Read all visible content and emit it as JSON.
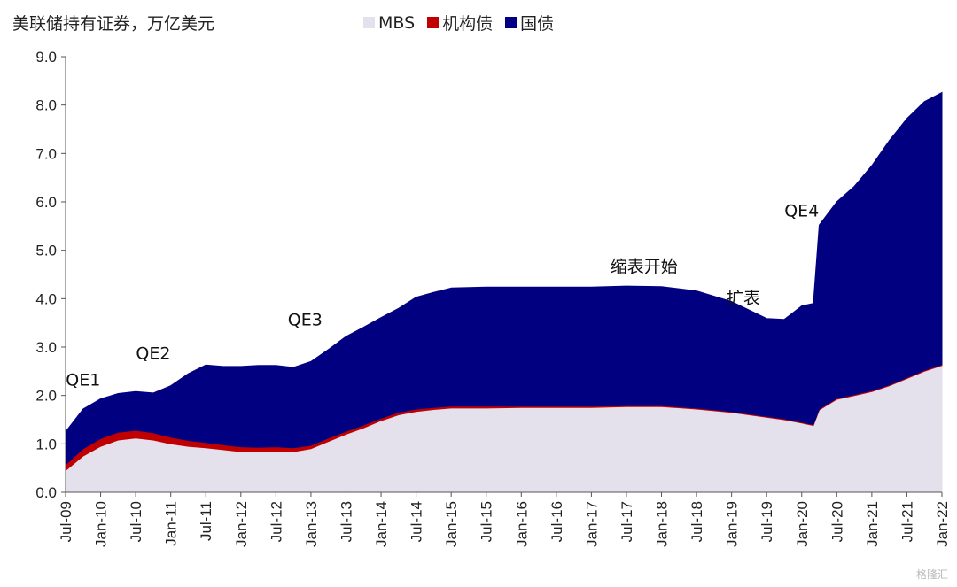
{
  "chart_data": {
    "type": "area",
    "stacked": true,
    "title": "美联储持有证券，万亿美元",
    "xlabel": "",
    "ylabel": "",
    "ylim": [
      0,
      9
    ],
    "yticks": [
      "0.0",
      "1.0",
      "2.0",
      "3.0",
      "4.0",
      "5.0",
      "6.0",
      "7.0",
      "8.0",
      "9.0"
    ],
    "x_tick_labels": [
      "Jul-09",
      "Jan-10",
      "Jul-10",
      "Jan-11",
      "Jul-11",
      "Jan-12",
      "Jul-12",
      "Jan-13",
      "Jul-13",
      "Jan-14",
      "Jul-14",
      "Jan-15",
      "Jul-15",
      "Jan-16",
      "Jul-16",
      "Jan-17",
      "Jul-17",
      "Jan-18",
      "Jul-18",
      "Jan-19",
      "Jul-19",
      "Jan-20",
      "Jul-20",
      "Jan-21",
      "Jul-21",
      "Jan-22"
    ],
    "legend_position": "top",
    "series": [
      {
        "name": "MBS",
        "color": "#e4e0ec",
        "x": [
          "2009-07",
          "2009-10",
          "2010-01",
          "2010-04",
          "2010-07",
          "2010-10",
          "2011-01",
          "2011-04",
          "2011-07",
          "2011-10",
          "2012-01",
          "2012-04",
          "2012-07",
          "2012-10",
          "2013-01",
          "2013-04",
          "2013-07",
          "2013-10",
          "2014-01",
          "2014-04",
          "2014-07",
          "2014-10",
          "2015-01",
          "2015-07",
          "2016-01",
          "2016-07",
          "2017-01",
          "2017-07",
          "2018-01",
          "2018-07",
          "2019-01",
          "2019-07",
          "2019-10",
          "2020-01",
          "2020-03",
          "2020-04",
          "2020-07",
          "2020-10",
          "2021-01",
          "2021-04",
          "2021-07",
          "2021-10",
          "2022-01"
        ],
        "values": [
          0.45,
          0.75,
          0.95,
          1.08,
          1.12,
          1.08,
          1.0,
          0.95,
          0.92,
          0.88,
          0.84,
          0.84,
          0.85,
          0.84,
          0.9,
          1.05,
          1.2,
          1.33,
          1.48,
          1.6,
          1.67,
          1.71,
          1.74,
          1.74,
          1.75,
          1.75,
          1.75,
          1.77,
          1.77,
          1.72,
          1.65,
          1.55,
          1.5,
          1.43,
          1.38,
          1.7,
          1.92,
          2.0,
          2.08,
          2.2,
          2.35,
          2.5,
          2.62
        ]
      },
      {
        "name": "机构债",
        "color": "#c00000",
        "x": [
          "2009-07",
          "2009-10",
          "2010-01",
          "2010-04",
          "2010-07",
          "2010-10",
          "2011-01",
          "2011-04",
          "2011-07",
          "2011-10",
          "2012-01",
          "2012-04",
          "2012-07",
          "2012-10",
          "2013-01",
          "2013-04",
          "2013-07",
          "2013-10",
          "2014-01",
          "2014-04",
          "2014-07",
          "2014-10",
          "2015-01",
          "2015-07",
          "2016-01",
          "2016-07",
          "2017-01",
          "2017-07",
          "2018-01",
          "2018-07",
          "2019-01",
          "2019-07",
          "2019-10",
          "2020-01",
          "2020-03",
          "2020-04",
          "2020-07",
          "2020-10",
          "2021-01",
          "2021-04",
          "2021-07",
          "2021-10",
          "2022-01"
        ],
        "values": [
          0.12,
          0.15,
          0.16,
          0.16,
          0.16,
          0.15,
          0.14,
          0.12,
          0.11,
          0.1,
          0.1,
          0.09,
          0.09,
          0.08,
          0.07,
          0.07,
          0.06,
          0.06,
          0.05,
          0.05,
          0.05,
          0.04,
          0.04,
          0.04,
          0.03,
          0.03,
          0.03,
          0.02,
          0.02,
          0.02,
          0.02,
          0.02,
          0.02,
          0.02,
          0.02,
          0.02,
          0.02,
          0.02,
          0.02,
          0.02,
          0.02,
          0.02,
          0.02
        ]
      },
      {
        "name": "国债",
        "color": "#000080",
        "x": [
          "2009-07",
          "2009-10",
          "2010-01",
          "2010-04",
          "2010-07",
          "2010-10",
          "2011-01",
          "2011-04",
          "2011-07",
          "2011-10",
          "2012-01",
          "2012-04",
          "2012-07",
          "2012-10",
          "2013-01",
          "2013-04",
          "2013-07",
          "2013-10",
          "2014-01",
          "2014-04",
          "2014-07",
          "2014-10",
          "2015-01",
          "2015-07",
          "2016-01",
          "2016-07",
          "2017-01",
          "2017-07",
          "2018-01",
          "2018-07",
          "2019-01",
          "2019-07",
          "2019-10",
          "2020-01",
          "2020-03",
          "2020-04",
          "2020-07",
          "2020-10",
          "2021-01",
          "2021-04",
          "2021-07",
          "2021-10",
          "2022-01"
        ],
        "values": [
          0.68,
          0.82,
          0.82,
          0.8,
          0.8,
          0.82,
          1.06,
          1.38,
          1.6,
          1.62,
          1.66,
          1.69,
          1.68,
          1.66,
          1.73,
          1.83,
          1.96,
          2.02,
          2.08,
          2.15,
          2.31,
          2.38,
          2.44,
          2.46,
          2.46,
          2.46,
          2.46,
          2.47,
          2.46,
          2.42,
          2.27,
          2.02,
          2.05,
          2.4,
          2.5,
          3.8,
          4.06,
          4.3,
          4.65,
          5.05,
          5.35,
          5.55,
          5.62
        ]
      }
    ],
    "annotations": [
      {
        "text": "QE1",
        "at": "2009-10",
        "y": 2.2
      },
      {
        "text": "QE2",
        "at": "2010-10",
        "y": 2.75
      },
      {
        "text": "QE3",
        "at": "2012-12",
        "y": 3.45
      },
      {
        "text": "缩表开始",
        "at": "2017-10",
        "y": 4.55
      },
      {
        "text": "扩表",
        "at": "2019-03",
        "y": 3.9
      },
      {
        "text": "QE4",
        "at": "2020-01",
        "y": 5.7
      }
    ]
  },
  "watermark": "格隆汇"
}
